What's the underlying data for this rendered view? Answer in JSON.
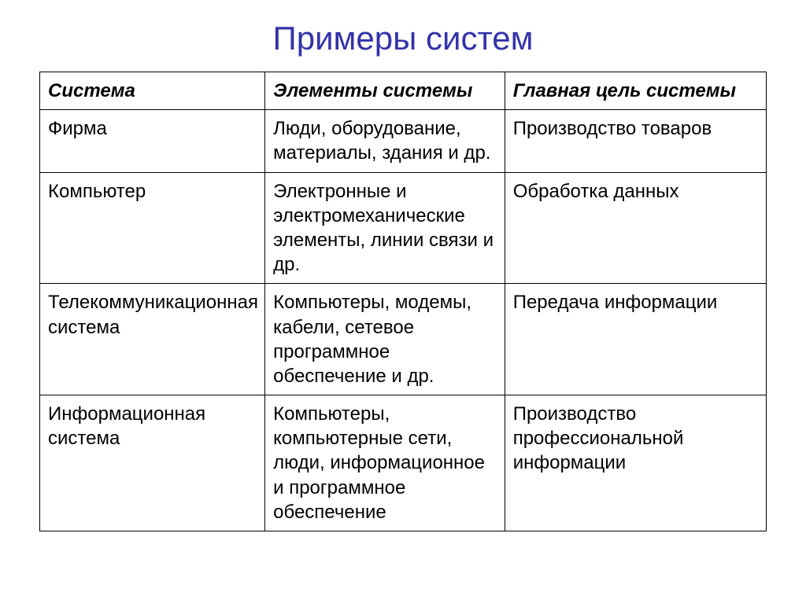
{
  "title": "Примеры систем",
  "table": {
    "columns": [
      "Система",
      "Элементы системы",
      "Главная цель системы"
    ],
    "rows": [
      [
        "Фирма",
        "Люди, оборудование, материалы, здания и др.",
        "Производство товаров"
      ],
      [
        "Компьютер",
        "Электронные и электромеханические элементы, линии связи и др.",
        "Обработка данных"
      ],
      [
        "Телекоммуникационная система",
        "Компьютеры, модемы, кабели, сетевое программное обеспечение и др.",
        "Передача информации"
      ],
      [
        "Информационная система",
        "Компьютеры, компьютерные сети, люди, информационное и программное обеспечение",
        "Производство профессиональной информации"
      ]
    ],
    "column_widths": [
      "31%",
      "33%",
      "36%"
    ],
    "border_color": "#000000",
    "title_color": "#3333aa",
    "title_fontsize": 42,
    "cell_fontsize": 24,
    "background_color": "#ffffff"
  }
}
